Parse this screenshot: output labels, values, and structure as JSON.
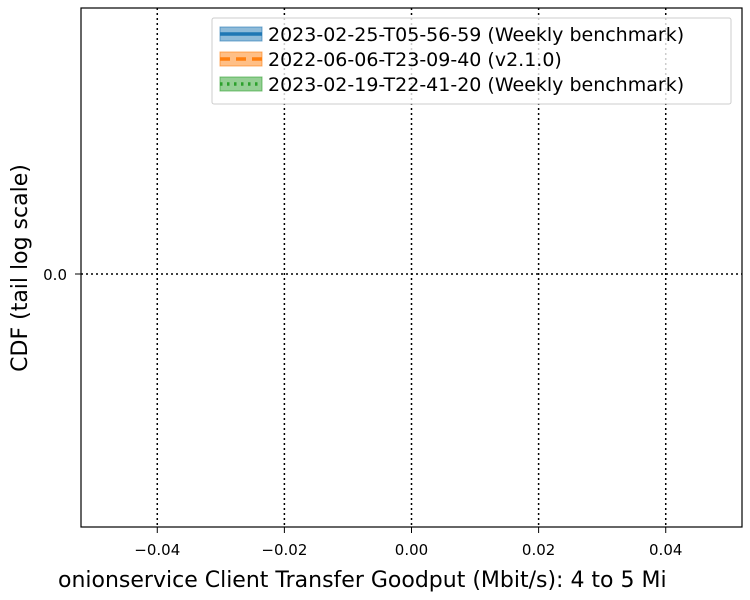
{
  "chart_data": {
    "type": "line",
    "title": "",
    "xlabel": "onionservice Client Transfer Goodput (Mbit/s): 4 to 5 Mi",
    "ylabel": "CDF (tail log scale)",
    "xlim": [
      -0.052,
      0.052
    ],
    "x_ticks": [
      -0.04,
      -0.02,
      0.0,
      0.02,
      0.04
    ],
    "x_tick_labels": [
      "−0.04",
      "−0.02",
      "0.00",
      "0.02",
      "0.04"
    ],
    "y_ticks": [
      0.0
    ],
    "y_tick_labels": [
      "0.0"
    ],
    "grid": true,
    "legend_position": "top-right",
    "series": [
      {
        "name": "2023-02-25-T05-56-59 (Weekly benchmark)",
        "color": "#1f77b4",
        "linestyle": "solid",
        "values": []
      },
      {
        "name": "2022-06-06-T23-09-40 (v2.1.0)",
        "color": "#ff7f0e",
        "linestyle": "dashed",
        "values": []
      },
      {
        "name": "2023-02-19-T22-41-20 (Weekly benchmark)",
        "color": "#2ca02c",
        "linestyle": "dotted",
        "values": []
      }
    ]
  }
}
